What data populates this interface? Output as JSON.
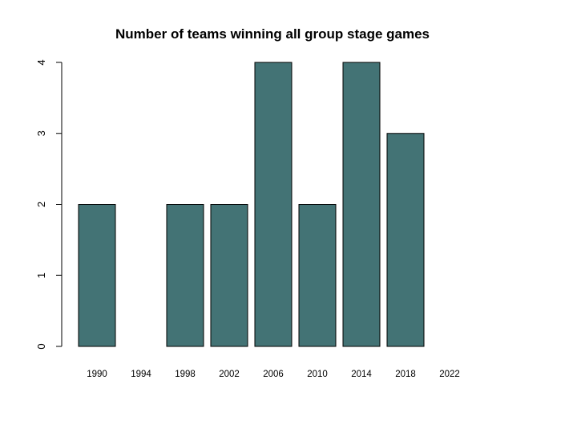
{
  "colors": {
    "bar_fill": "#437375",
    "bar_stroke": "#000000",
    "axis": "#000000",
    "background": "#ffffff"
  },
  "chart_data": {
    "type": "bar",
    "title": "Number of teams winning all group stage games",
    "xlabel": "",
    "ylabel": "",
    "categories": [
      "1990",
      "1994",
      "1998",
      "2002",
      "2006",
      "2010",
      "2014",
      "2018",
      "2022"
    ],
    "values": [
      2,
      0,
      2,
      2,
      4,
      2,
      4,
      3,
      0
    ],
    "ylim": [
      0,
      4
    ],
    "yticks": [
      "0",
      "1",
      "2",
      "3",
      "4"
    ],
    "grid": false,
    "legend": "none"
  }
}
